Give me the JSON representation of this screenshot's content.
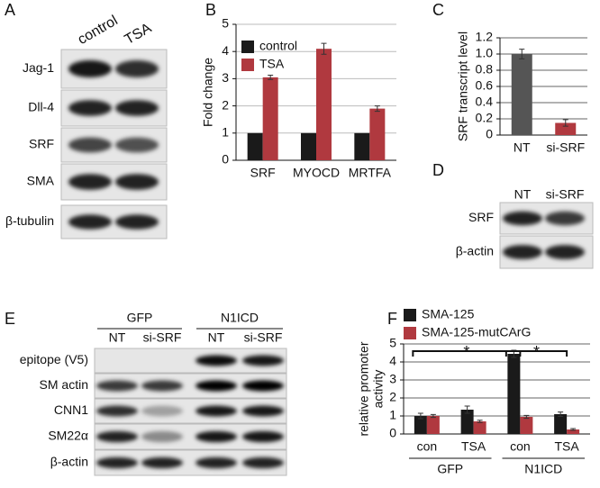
{
  "panels": {
    "A": {
      "label": "A",
      "columns": [
        "control",
        "TSA"
      ],
      "rows": [
        "Jag-1",
        "Dll-4",
        "SRF",
        "SMA",
        "β-tubulin"
      ]
    },
    "D": {
      "label": "D",
      "columns": [
        "NT",
        "si-SRF"
      ],
      "rows": [
        "SRF",
        "β-actin"
      ]
    },
    "E": {
      "label": "E",
      "groups": [
        "GFP",
        "N1ICD"
      ],
      "columns": [
        "NT",
        "si-SRF",
        "NT",
        "si-SRF"
      ],
      "rows": [
        "epitope (V5)",
        "SM actin",
        "CNN1",
        "SM22α",
        "β-actin"
      ]
    }
  },
  "chart_data": [
    {
      "type": "bar",
      "panel": "B",
      "y_label": "Fold change",
      "categories": [
        "SRF",
        "MYOCD",
        "MRTFA"
      ],
      "series": [
        {
          "name": "control",
          "color": "#1a1a1a",
          "values": [
            1,
            1,
            1
          ]
        },
        {
          "name": "TSA",
          "color": "#b0393f",
          "values": [
            3.05,
            4.1,
            1.9
          ],
          "errors": [
            0.08,
            0.2,
            0.1
          ]
        }
      ],
      "ylim": [
        0,
        5
      ],
      "yticks": [
        0,
        1,
        2,
        3,
        4,
        5
      ],
      "grid": true,
      "legend": "upper left"
    },
    {
      "type": "bar",
      "panel": "C",
      "y_label": "SRF transcript level",
      "categories": [
        "NT",
        "si-SRF"
      ],
      "series": [
        {
          "colors": [
            "#555555",
            "#b0393f"
          ],
          "values": [
            1.0,
            0.15
          ],
          "errors": [
            0.06,
            0.04
          ]
        }
      ],
      "ylim": [
        0,
        1.2
      ],
      "yticks": [
        0,
        0.2,
        0.4,
        0.6,
        0.8,
        {
          "value": 1,
          "label": "1.0"
        },
        1.2
      ],
      "grid": true
    },
    {
      "type": "bar",
      "panel": "F",
      "y_label": [
        "relative promoter",
        "activity"
      ],
      "categories": [
        "con",
        "TSA",
        "con",
        "TSA"
      ],
      "groups": [
        "GFP",
        "N1ICD"
      ],
      "series": [
        {
          "name": "SMA-125",
          "color": "#1a1a1a",
          "values": [
            1.0,
            1.35,
            4.45,
            1.1
          ],
          "errors": [
            0.15,
            0.2,
            0.2,
            0.12
          ]
        },
        {
          "name": "SMA-125-mutCArG",
          "color": "#b0393f",
          "values": [
            1.0,
            0.7,
            0.95,
            0.25
          ],
          "errors": [
            0.08,
            0.06,
            0.08,
            0.05
          ]
        }
      ],
      "ylim": [
        0,
        5
      ],
      "yticks": [
        0,
        1,
        2,
        3,
        4,
        5
      ],
      "grid": true,
      "legend": "above",
      "annotations": [
        "*",
        "*"
      ]
    }
  ]
}
